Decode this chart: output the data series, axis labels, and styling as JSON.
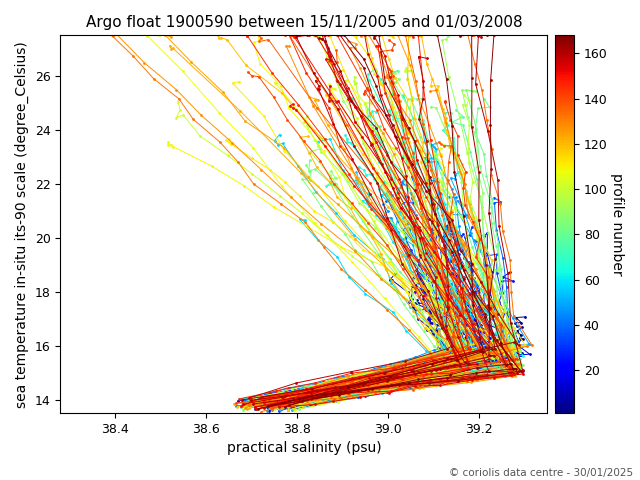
{
  "title": "Argo float 1900590 between 15/11/2005 and 01/03/2008",
  "xlabel": "practical salinity (psu)",
  "ylabel": "sea temperature in-situ its-90 scale (degree_Celsius)",
  "colorbar_label": "profile number",
  "copyright": "© coriolis data centre - 30/01/2025",
  "xlim": [
    38.28,
    39.35
  ],
  "ylim": [
    13.5,
    27.5
  ],
  "n_profiles": 168,
  "cmap": "jet",
  "vmin": 1,
  "vmax": 168,
  "colorbar_ticks": [
    20,
    40,
    60,
    80,
    100,
    120,
    140,
    160
  ],
  "background_color": "#ffffff",
  "title_fontsize": 11,
  "label_fontsize": 10,
  "tick_fontsize": 9
}
